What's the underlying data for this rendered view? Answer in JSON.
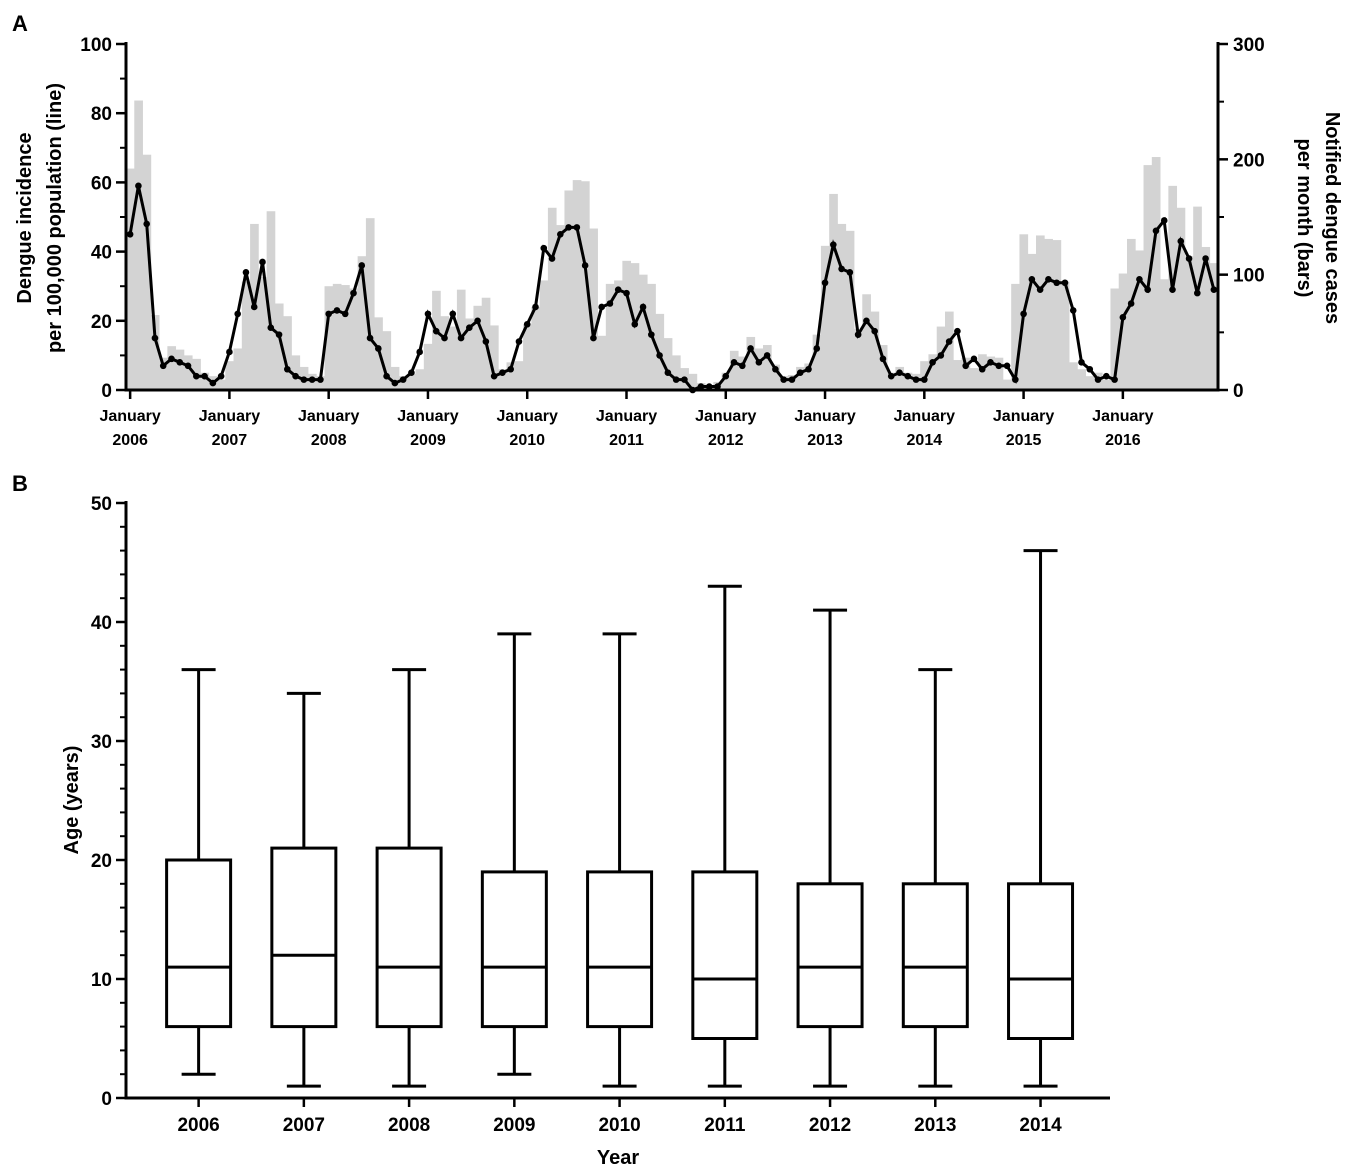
{
  "chart_data": [
    {
      "panel_label": "A",
      "type": "bar+line",
      "ylabel_left": [
        "Dengue incidence",
        "per 100,000 population (line)"
      ],
      "ylabel_right": [
        "Notified dengue cases",
        "per month (bars)"
      ],
      "ylim_left": [
        0,
        100
      ],
      "ylim_right": [
        0,
        300
      ],
      "yticks_left": [
        "0",
        "20",
        "40",
        "60",
        "80",
        "100"
      ],
      "yticks_right": [
        "0",
        "100",
        "200",
        "300"
      ],
      "xtick_labels": [
        [
          "January",
          "2006"
        ],
        [
          "January",
          "2007"
        ],
        [
          "January",
          "2008"
        ],
        [
          "January",
          "2009"
        ],
        [
          "January",
          "2010"
        ],
        [
          "January",
          "2011"
        ],
        [
          "January",
          "2012"
        ],
        [
          "January",
          "2013"
        ],
        [
          "January",
          "2014"
        ],
        [
          "January",
          "2015"
        ],
        [
          "January",
          "2016"
        ]
      ],
      "months_start": "2006-01",
      "bars": [
        192,
        251,
        204,
        65,
        28,
        38,
        35,
        30,
        27,
        15,
        12,
        9,
        25,
        36,
        94,
        144,
        98,
        155,
        75,
        64,
        30,
        20,
        14,
        12,
        90,
        92,
        91,
        88,
        116,
        149,
        63,
        51,
        20,
        12,
        14,
        18,
        40,
        86,
        64,
        55,
        87,
        62,
        73,
        80,
        56,
        18,
        24,
        25,
        57,
        72,
        95,
        158,
        143,
        173,
        182,
        181,
        140,
        47,
        92,
        95,
        112,
        110,
        100,
        92,
        66,
        45,
        30,
        19,
        14,
        6,
        2,
        7,
        15,
        34,
        29,
        46,
        36,
        39,
        22,
        12,
        13,
        20,
        23,
        48,
        125,
        170,
        144,
        138,
        53,
        83,
        68,
        39,
        15,
        20,
        15,
        14,
        25,
        31,
        55,
        68,
        26,
        28,
        19,
        31,
        29,
        28,
        9,
        92,
        135,
        118,
        134,
        131,
        130,
        94,
        24,
        18,
        12,
        15,
        9,
        88,
        101,
        131,
        121,
        195,
        202,
        96,
        177,
        158,
        116,
        159,
        124,
        110
      ],
      "line": [
        45,
        59,
        48,
        15,
        7,
        9,
        8,
        7,
        4,
        4,
        2,
        4,
        11,
        22,
        34,
        24,
        37,
        18,
        16,
        6,
        4,
        3,
        3,
        3,
        22,
        23,
        22,
        28,
        36,
        15,
        12,
        4,
        2,
        3,
        5,
        11,
        22,
        17,
        15,
        22,
        15,
        18,
        20,
        14,
        4,
        5,
        6,
        14,
        19,
        24,
        41,
        38,
        45,
        47,
        47,
        36,
        15,
        24,
        25,
        29,
        28,
        19,
        24,
        16,
        10,
        5,
        3,
        3,
        0,
        1,
        1,
        1,
        4,
        8,
        7,
        12,
        8,
        10,
        6,
        3,
        3,
        5,
        6,
        12,
        31,
        42,
        35,
        34,
        16,
        20,
        17,
        9,
        4,
        5,
        4,
        3,
        3,
        8,
        10,
        14,
        17,
        7,
        9,
        6,
        8,
        7,
        7,
        3,
        22,
        32,
        29,
        32,
        31,
        31,
        23,
        8,
        6,
        3,
        4,
        3,
        21,
        25,
        32,
        29,
        46,
        49,
        29,
        43,
        38,
        28,
        38,
        29
      ]
    },
    {
      "panel_label": "B",
      "type": "boxplot",
      "xlabel": "Year",
      "ylabel": "Age (years)",
      "ylim": [
        0,
        50
      ],
      "yticks": [
        "0",
        "10",
        "20",
        "30",
        "40",
        "50"
      ],
      "categories": [
        "2006",
        "2007",
        "2008",
        "2009",
        "2010",
        "2011",
        "2012",
        "2013",
        "2014"
      ],
      "min": [
        2,
        1,
        1,
        2,
        1,
        1,
        1,
        1,
        1
      ],
      "q1": [
        6,
        6,
        6,
        6,
        6,
        5,
        6,
        6,
        5
      ],
      "median": [
        11,
        12,
        11,
        11,
        11,
        10,
        11,
        11,
        10
      ],
      "q3": [
        20,
        21,
        21,
        19,
        19,
        19,
        18,
        18,
        18
      ],
      "max": [
        36,
        34,
        36,
        39,
        39,
        43,
        41,
        36,
        46
      ]
    }
  ]
}
